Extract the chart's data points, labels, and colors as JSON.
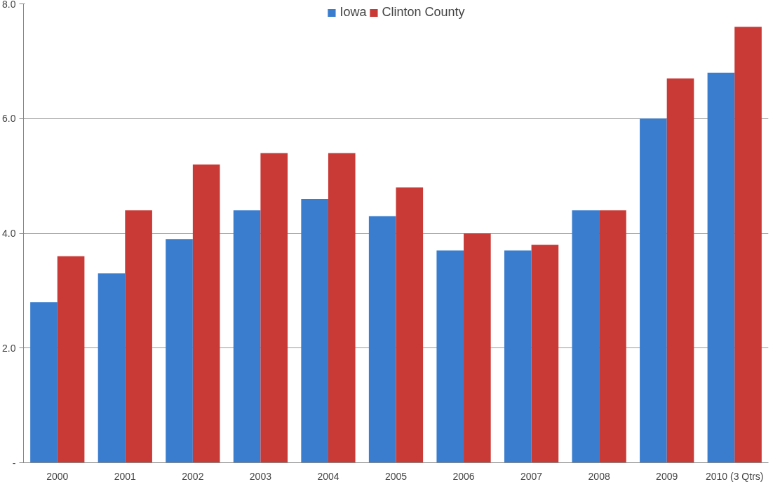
{
  "chart_data": {
    "type": "bar",
    "categories": [
      "2000",
      "2001",
      "2002",
      "2003",
      "2004",
      "2005",
      "2006",
      "2007",
      "2008",
      "2009",
      "2010 (3 Qtrs)"
    ],
    "series": [
      {
        "name": "Iowa",
        "color": "#3a7dce",
        "values": [
          2.8,
          3.3,
          3.9,
          4.4,
          4.6,
          4.3,
          3.7,
          3.7,
          4.4,
          6.0,
          6.8
        ]
      },
      {
        "name": "Clinton County",
        "color": "#c93a36",
        "values": [
          3.6,
          4.4,
          5.2,
          5.4,
          5.4,
          4.8,
          4.0,
          3.8,
          4.4,
          6.7,
          7.6
        ]
      }
    ],
    "ylim": [
      0,
      8
    ],
    "yticks": [
      {
        "value": 0,
        "label": "-"
      },
      {
        "value": 2,
        "label": "2.0"
      },
      {
        "value": 4,
        "label": "4.0"
      },
      {
        "value": 6,
        "label": "6.0"
      },
      {
        "value": 8,
        "label": "8.0"
      }
    ],
    "grid": "y",
    "legend": "top"
  }
}
